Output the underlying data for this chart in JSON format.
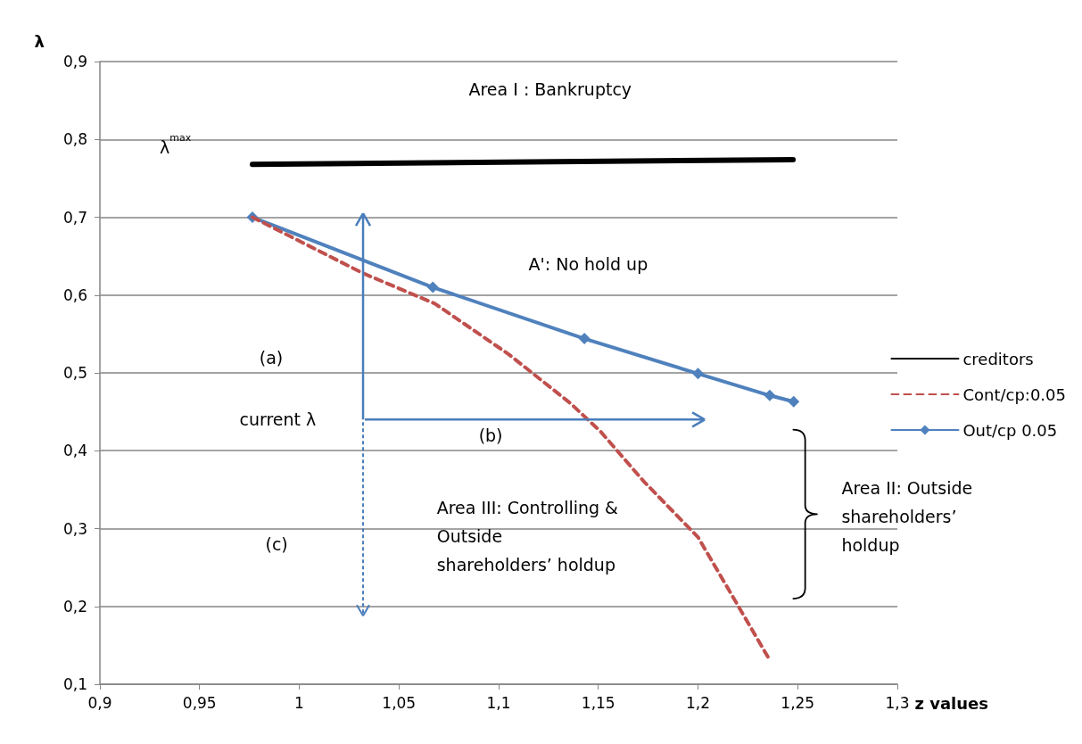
{
  "chart_data": {
    "type": "line",
    "xlabel": "z values",
    "ylabel": "λ",
    "xlim": [
      0.9,
      1.3
    ],
    "xticks": [
      {
        "value": 0.9,
        "label": "0,9"
      },
      {
        "value": 0.95,
        "label": "0,95"
      },
      {
        "value": 1,
        "label": "1"
      },
      {
        "value": 1.05,
        "label": "1,05"
      },
      {
        "value": 1.1,
        "label": "1,1"
      },
      {
        "value": 1.15,
        "label": "1,15"
      },
      {
        "value": 1.2,
        "label": "1,2"
      },
      {
        "value": 1.25,
        "label": "1,25"
      },
      {
        "value": 1.3,
        "label": "1,3"
      }
    ],
    "ylim": [
      0.1,
      0.9
    ],
    "yticks": [
      {
        "value": 0.1,
        "label": "0,1"
      },
      {
        "value": 0.2,
        "label": "0,2"
      },
      {
        "value": 0.3,
        "label": "0,3"
      },
      {
        "value": 0.4,
        "label": "0,4"
      },
      {
        "value": 0.5,
        "label": "0,5"
      },
      {
        "value": 0.6,
        "label": "0,6"
      },
      {
        "value": 0.7,
        "label": "0,7"
      },
      {
        "value": 0.8,
        "label": "0,8"
      },
      {
        "value": 0.9,
        "label": "0,9"
      }
    ],
    "grid": "y",
    "legend": "right",
    "series": [
      {
        "name": "creditors",
        "color": "#000000",
        "line_style": "solid",
        "marker": "none",
        "x": [
          0.9765,
          1.2477
        ],
        "values": [
          0.768,
          0.774
        ]
      },
      {
        "name": "Cont/cp:0.05",
        "color": "#c0504d",
        "line_style": "dashed",
        "marker": "none",
        "x": [
          0.9765,
          1.032,
          1.068,
          1.105,
          1.136,
          1.151,
          1.173,
          1.2,
          1.236
        ],
        "values": [
          0.7,
          0.628,
          0.589,
          0.524,
          0.461,
          0.425,
          0.36,
          0.289,
          0.131
        ]
      },
      {
        "name": "Out/cp 0.05",
        "color": "#4f81bd",
        "line_style": "solid",
        "marker": "diamond",
        "x": [
          0.9765,
          1.067,
          1.143,
          1.2,
          1.236,
          1.248
        ],
        "values": [
          0.7,
          0.61,
          0.544,
          0.499,
          0.471,
          0.463
        ]
      }
    ],
    "annotations": [
      "Area I : Bankruptcy",
      "λ$^{max}$",
      "A': No hold up",
      "(a)",
      "current λ",
      "(b)",
      "(c)",
      "Area III: Controlling &\nOutside\nshareholders’ holdup",
      "Area II: Outside\nshareholders’\nholdup"
    ]
  }
}
